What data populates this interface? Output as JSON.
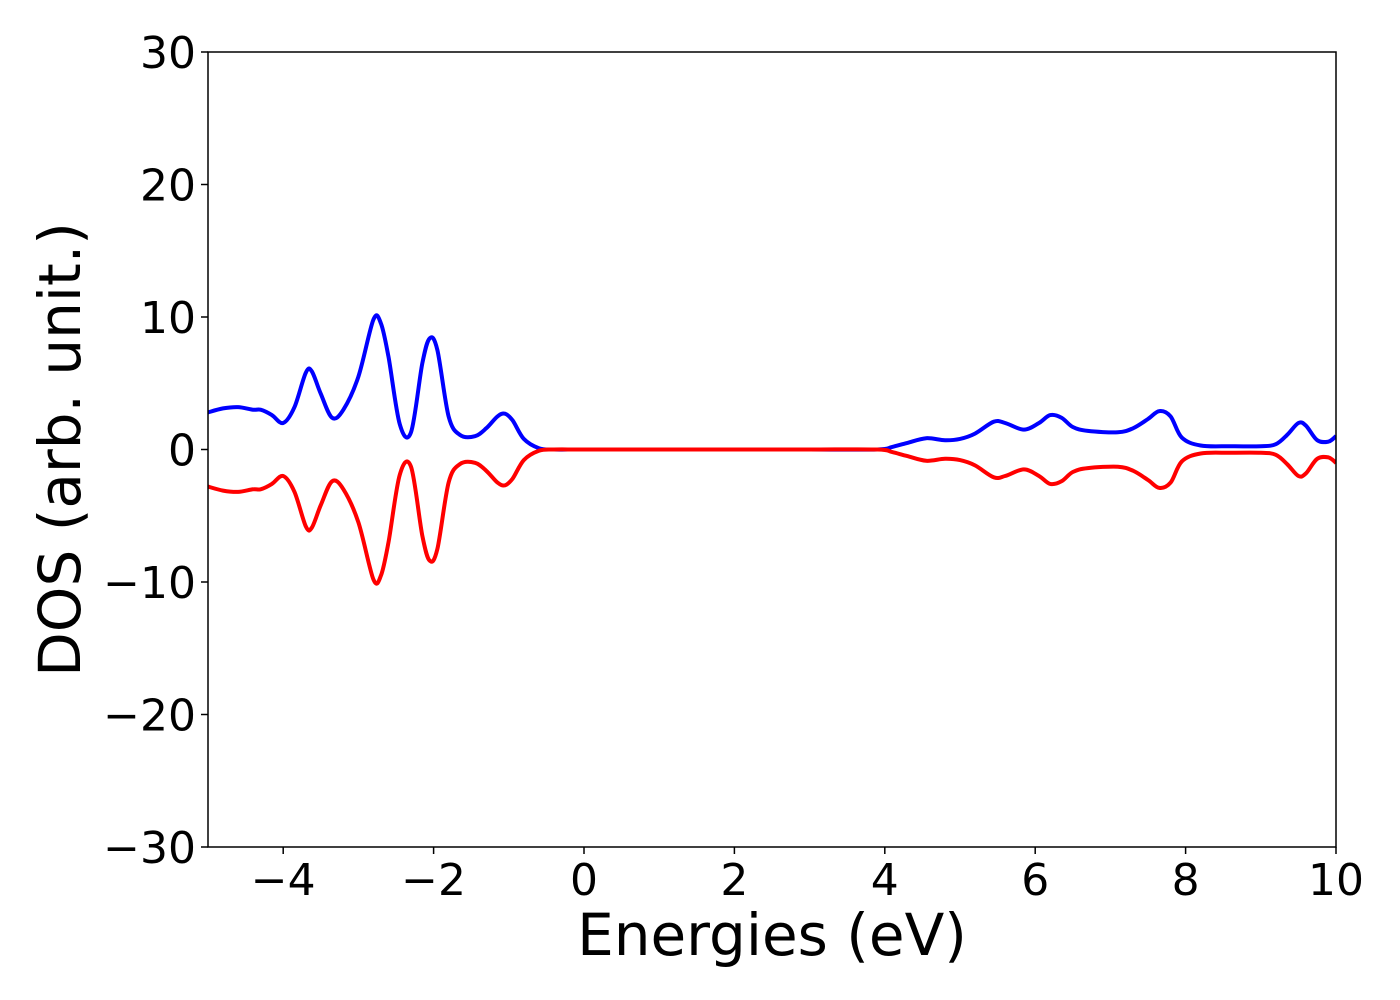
{
  "chart_data": {
    "type": "line",
    "title": "",
    "xlabel": "Energies (eV)",
    "ylabel": "DOS (arb. unit.)",
    "xlim": [
      -5,
      10
    ],
    "ylim": [
      -30,
      30
    ],
    "xticks": [
      -4,
      -2,
      0,
      2,
      4,
      6,
      8,
      10
    ],
    "xtick_labels": [
      "−4",
      "−2",
      "0",
      "2",
      "4",
      "6",
      "8",
      "10"
    ],
    "yticks": [
      -30,
      -20,
      -10,
      0,
      10,
      20,
      30
    ],
    "ytick_labels": [
      "−30",
      "−20",
      "−10",
      "0",
      "10",
      "20",
      "30"
    ],
    "grid": false,
    "series": [
      {
        "color": "#0000ff",
        "x": [
          -5.0,
          -4.8,
          -4.6,
          -4.4,
          -4.3,
          -4.15,
          -4.0,
          -3.85,
          -3.7,
          -3.62,
          -3.5,
          -3.35,
          -3.2,
          -3.0,
          -2.8,
          -2.7,
          -2.6,
          -2.45,
          -2.3,
          -2.15,
          -2.05,
          -1.95,
          -1.8,
          -1.65,
          -1.45,
          -1.3,
          -1.15,
          -1.05,
          -0.95,
          -0.8,
          -0.6,
          -0.4,
          0.0,
          1.0,
          2.0,
          3.0,
          3.9,
          4.1,
          4.3,
          4.55,
          4.8,
          5.0,
          5.2,
          5.45,
          5.6,
          5.85,
          6.05,
          6.2,
          6.35,
          6.5,
          6.7,
          7.1,
          7.3,
          7.5,
          7.65,
          7.8,
          7.95,
          8.2,
          8.6,
          9.0,
          9.2,
          9.35,
          9.5,
          9.6,
          9.75,
          9.9,
          10.0
        ],
        "y": [
          2.8,
          3.1,
          3.2,
          3.0,
          3.0,
          2.6,
          2.0,
          3.2,
          5.8,
          5.9,
          4.2,
          2.4,
          3.0,
          5.5,
          9.8,
          9.5,
          7.0,
          1.9,
          1.3,
          6.5,
          8.4,
          7.5,
          2.5,
          1.1,
          1.0,
          1.6,
          2.5,
          2.7,
          2.2,
          0.8,
          0.1,
          0.0,
          0.0,
          0.0,
          0.0,
          0.0,
          0.0,
          0.2,
          0.5,
          0.85,
          0.7,
          0.8,
          1.2,
          2.1,
          2.0,
          1.5,
          2.0,
          2.6,
          2.4,
          1.7,
          1.4,
          1.3,
          1.6,
          2.3,
          2.9,
          2.5,
          0.9,
          0.3,
          0.25,
          0.25,
          0.4,
          1.1,
          2.0,
          1.8,
          0.7,
          0.6,
          1.0
        ]
      },
      {
        "color": "#ff0000",
        "x": [
          -5.0,
          -4.8,
          -4.6,
          -4.4,
          -4.3,
          -4.15,
          -4.0,
          -3.85,
          -3.7,
          -3.62,
          -3.5,
          -3.35,
          -3.2,
          -3.0,
          -2.8,
          -2.7,
          -2.6,
          -2.45,
          -2.3,
          -2.15,
          -2.05,
          -1.95,
          -1.8,
          -1.65,
          -1.45,
          -1.3,
          -1.15,
          -1.05,
          -0.95,
          -0.8,
          -0.6,
          -0.4,
          0.0,
          1.0,
          2.0,
          3.0,
          3.9,
          4.1,
          4.3,
          4.55,
          4.8,
          5.0,
          5.2,
          5.45,
          5.6,
          5.85,
          6.05,
          6.2,
          6.35,
          6.5,
          6.7,
          7.1,
          7.3,
          7.5,
          7.65,
          7.8,
          7.95,
          8.2,
          8.6,
          9.0,
          9.2,
          9.35,
          9.5,
          9.6,
          9.75,
          9.9,
          10.0
        ],
        "y": [
          -2.8,
          -3.1,
          -3.2,
          -3.0,
          -3.0,
          -2.6,
          -2.0,
          -3.2,
          -5.8,
          -5.9,
          -4.2,
          -2.4,
          -3.0,
          -5.5,
          -9.8,
          -9.5,
          -7.0,
          -1.9,
          -1.3,
          -6.5,
          -8.4,
          -7.5,
          -2.5,
          -1.1,
          -1.0,
          -1.6,
          -2.5,
          -2.7,
          -2.2,
          -0.8,
          -0.1,
          0.0,
          0.0,
          0.0,
          0.0,
          0.0,
          0.0,
          -0.2,
          -0.5,
          -0.85,
          -0.7,
          -0.8,
          -1.2,
          -2.1,
          -2.0,
          -1.5,
          -2.0,
          -2.6,
          -2.4,
          -1.7,
          -1.4,
          -1.3,
          -1.6,
          -2.3,
          -2.9,
          -2.5,
          -0.9,
          -0.3,
          -0.25,
          -0.25,
          -0.4,
          -1.1,
          -2.0,
          -1.8,
          -0.7,
          -0.6,
          -1.0
        ]
      }
    ]
  }
}
